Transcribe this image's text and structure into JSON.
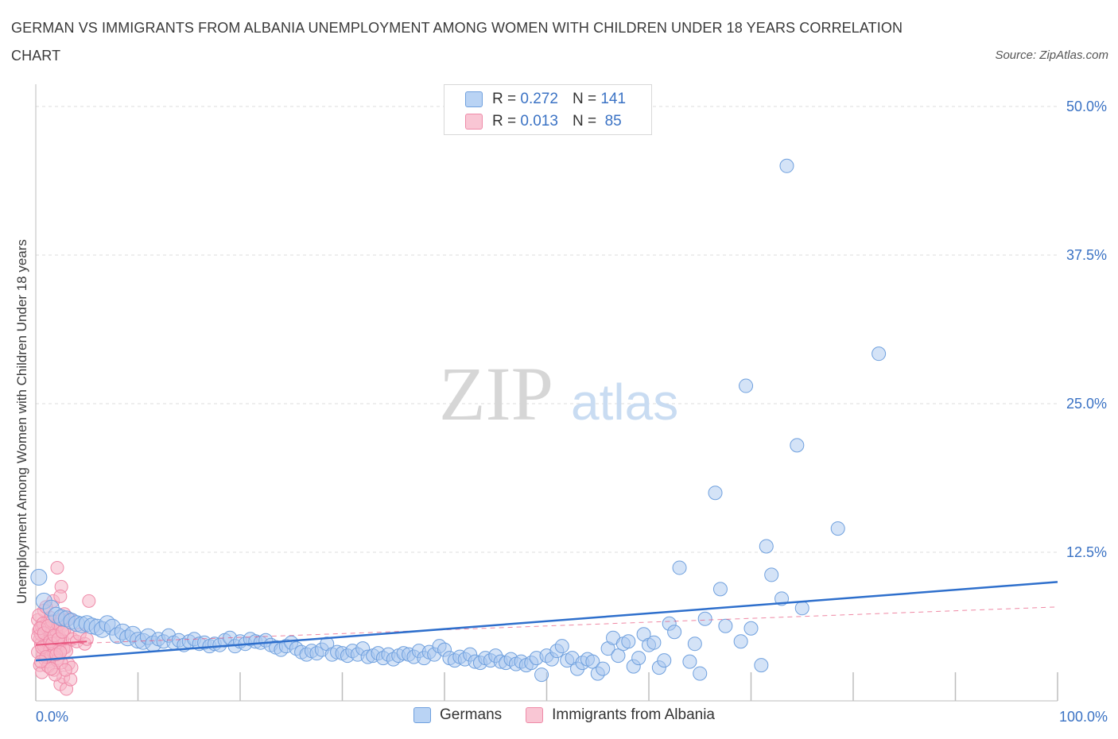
{
  "title": "GERMAN VS IMMIGRANTS FROM ALBANIA UNEMPLOYMENT AMONG WOMEN WITH CHILDREN UNDER 18 YEARS CORRELATION CHART",
  "source": "Source: ZipAtlas.com",
  "watermark": {
    "zip": "ZIP",
    "atlas": "atlas"
  },
  "legend_top": [
    {
      "r_label": "R =",
      "r_value": "0.272",
      "n_label": "N =",
      "n_value": "141"
    },
    {
      "r_label": "R =",
      "r_value": "0.013",
      "n_label": "N =",
      "n_value": "85"
    }
  ],
  "chart_data": {
    "type": "scatter",
    "title": "GERMAN VS IMMIGRANTS FROM ALBANIA UNEMPLOYMENT AMONG WOMEN WITH CHILDREN UNDER 18 YEARS CORRELATION CHART",
    "xlabel": "",
    "ylabel": "Unemployment Among Women with Children Under 18 years",
    "xlim": [
      0,
      100
    ],
    "ylim": [
      0,
      50
    ],
    "x_tick_labels": [
      "0.0%",
      "100.0%"
    ],
    "y_ticks": [
      12.5,
      25.0,
      37.5,
      50.0
    ],
    "y_tick_labels": [
      "12.5%",
      "25.0%",
      "37.5%",
      "50.0%"
    ],
    "grid": true,
    "legend_position": "bottom",
    "colors": {
      "germans_fill": "#a9c8f0",
      "germans_stroke": "#6fa0de",
      "germans_line": "#2e6fcc",
      "albania_fill": "#f6b6c8",
      "albania_stroke": "#ef8aa8",
      "albania_line": "#e8557e"
    },
    "series": [
      {
        "name": "Germans",
        "trend": {
          "x": [
            0,
            100
          ],
          "y": [
            3.4,
            10.0
          ]
        },
        "points": [
          [
            0.3,
            10.4
          ],
          [
            0.8,
            8.4
          ],
          [
            1.5,
            7.8
          ],
          [
            2.0,
            7.2
          ],
          [
            2.5,
            7.0
          ],
          [
            3.0,
            6.9
          ],
          [
            3.5,
            6.7
          ],
          [
            4.0,
            6.5
          ],
          [
            4.5,
            6.4
          ],
          [
            5.0,
            6.5
          ],
          [
            5.5,
            6.3
          ],
          [
            6.0,
            6.2
          ],
          [
            6.5,
            6.0
          ],
          [
            7.0,
            6.5
          ],
          [
            7.5,
            6.2
          ],
          [
            8.0,
            5.5
          ],
          [
            8.5,
            5.8
          ],
          [
            9.0,
            5.3
          ],
          [
            9.5,
            5.6
          ],
          [
            10.0,
            5.1
          ],
          [
            10.5,
            5.0
          ],
          [
            11.0,
            5.4
          ],
          [
            11.5,
            4.8
          ],
          [
            12.0,
            5.2
          ],
          [
            12.5,
            5.0
          ],
          [
            13.0,
            5.5
          ],
          [
            13.5,
            4.9
          ],
          [
            14.0,
            5.1
          ],
          [
            14.5,
            4.7
          ],
          [
            15.0,
            5.0
          ],
          [
            15.5,
            5.2
          ],
          [
            16.0,
            4.8
          ],
          [
            16.5,
            4.9
          ],
          [
            17.0,
            4.6
          ],
          [
            17.5,
            4.8
          ],
          [
            18.0,
            4.7
          ],
          [
            18.5,
            5.1
          ],
          [
            19.0,
            5.3
          ],
          [
            19.5,
            4.6
          ],
          [
            20.0,
            5.0
          ],
          [
            20.5,
            4.8
          ],
          [
            21.0,
            5.2
          ],
          [
            21.5,
            5.0
          ],
          [
            22.0,
            4.9
          ],
          [
            22.5,
            5.1
          ],
          [
            23.0,
            4.7
          ],
          [
            23.5,
            4.5
          ],
          [
            24.0,
            4.3
          ],
          [
            24.5,
            4.6
          ],
          [
            25.0,
            4.9
          ],
          [
            25.5,
            4.4
          ],
          [
            26.0,
            4.1
          ],
          [
            26.5,
            3.9
          ],
          [
            27.0,
            4.2
          ],
          [
            27.5,
            4.0
          ],
          [
            28.0,
            4.3
          ],
          [
            28.5,
            4.8
          ],
          [
            29.0,
            3.9
          ],
          [
            29.5,
            4.1
          ],
          [
            30.0,
            4.0
          ],
          [
            30.5,
            3.8
          ],
          [
            31.0,
            4.2
          ],
          [
            31.5,
            3.9
          ],
          [
            32.0,
            4.4
          ],
          [
            32.5,
            3.7
          ],
          [
            33.0,
            3.8
          ],
          [
            33.5,
            4.0
          ],
          [
            34.0,
            3.6
          ],
          [
            34.5,
            3.9
          ],
          [
            35.0,
            3.5
          ],
          [
            35.5,
            3.8
          ],
          [
            36.0,
            4.0
          ],
          [
            36.5,
            3.9
          ],
          [
            37.0,
            3.7
          ],
          [
            37.5,
            4.2
          ],
          [
            38.0,
            3.6
          ],
          [
            38.5,
            4.1
          ],
          [
            39.0,
            3.9
          ],
          [
            39.5,
            4.6
          ],
          [
            40.0,
            4.3
          ],
          [
            40.5,
            3.6
          ],
          [
            41.0,
            3.4
          ],
          [
            41.5,
            3.7
          ],
          [
            42.0,
            3.5
          ],
          [
            42.5,
            3.9
          ],
          [
            43.0,
            3.3
          ],
          [
            43.5,
            3.2
          ],
          [
            44.0,
            3.6
          ],
          [
            44.5,
            3.4
          ],
          [
            45.0,
            3.8
          ],
          [
            45.5,
            3.3
          ],
          [
            46.0,
            3.2
          ],
          [
            46.5,
            3.5
          ],
          [
            47.0,
            3.1
          ],
          [
            47.5,
            3.3
          ],
          [
            48.0,
            3.0
          ],
          [
            48.5,
            3.2
          ],
          [
            49.0,
            3.6
          ],
          [
            49.5,
            2.2
          ],
          [
            50.0,
            3.8
          ],
          [
            50.5,
            3.5
          ],
          [
            51.0,
            4.2
          ],
          [
            51.5,
            4.6
          ],
          [
            52.0,
            3.4
          ],
          [
            52.5,
            3.6
          ],
          [
            53.0,
            2.7
          ],
          [
            53.5,
            3.2
          ],
          [
            54.0,
            3.5
          ],
          [
            54.5,
            3.3
          ],
          [
            55.0,
            2.3
          ],
          [
            55.5,
            2.7
          ],
          [
            56.0,
            4.4
          ],
          [
            56.5,
            5.3
          ],
          [
            57.0,
            3.8
          ],
          [
            57.5,
            4.8
          ],
          [
            58.0,
            5.0
          ],
          [
            58.5,
            2.9
          ],
          [
            59.0,
            3.6
          ],
          [
            59.5,
            5.6
          ],
          [
            60.0,
            4.7
          ],
          [
            60.5,
            4.9
          ],
          [
            61.0,
            2.8
          ],
          [
            61.5,
            3.4
          ],
          [
            62.0,
            6.5
          ],
          [
            62.5,
            5.8
          ],
          [
            63.0,
            11.2
          ],
          [
            64.0,
            3.3
          ],
          [
            64.5,
            4.8
          ],
          [
            65.0,
            2.3
          ],
          [
            65.5,
            6.9
          ],
          [
            67.0,
            9.4
          ],
          [
            67.5,
            6.3
          ],
          [
            69.0,
            5.0
          ],
          [
            70.0,
            6.1
          ],
          [
            71.0,
            3.0
          ],
          [
            72.0,
            10.6
          ],
          [
            73.0,
            8.6
          ],
          [
            75.0,
            7.8
          ],
          [
            66.5,
            17.5
          ],
          [
            69.5,
            26.5
          ],
          [
            71.5,
            13.0
          ],
          [
            74.5,
            21.5
          ],
          [
            73.5,
            45.0
          ],
          [
            78.5,
            14.5
          ],
          [
            82.5,
            29.2
          ]
        ]
      },
      {
        "name": "Immigrants from Albania",
        "trend": {
          "x": [
            0,
            5
          ],
          "y": [
            4.7,
            5.0
          ]
        },
        "trend_extended": {
          "x": [
            0,
            100
          ],
          "y": [
            4.7,
            7.9
          ]
        },
        "points": [
          [
            0.2,
            6.8
          ],
          [
            0.3,
            5.9
          ],
          [
            0.4,
            5.2
          ],
          [
            0.5,
            4.8
          ],
          [
            0.6,
            6.2
          ],
          [
            0.7,
            3.9
          ],
          [
            0.8,
            7.6
          ],
          [
            0.9,
            5.5
          ],
          [
            1.0,
            4.4
          ],
          [
            1.1,
            6.6
          ],
          [
            1.2,
            5.1
          ],
          [
            1.3,
            3.3
          ],
          [
            1.4,
            7.0
          ],
          [
            1.5,
            5.8
          ],
          [
            1.6,
            4.2
          ],
          [
            1.7,
            8.4
          ],
          [
            1.8,
            2.6
          ],
          [
            1.9,
            6.0
          ],
          [
            2.0,
            4.9
          ],
          [
            2.1,
            11.2
          ],
          [
            2.2,
            3.6
          ],
          [
            2.3,
            5.4
          ],
          [
            2.4,
            1.4
          ],
          [
            2.5,
            9.6
          ],
          [
            2.6,
            6.3
          ],
          [
            2.7,
            2.0
          ],
          [
            2.8,
            7.3
          ],
          [
            2.9,
            4.5
          ],
          [
            3.0,
            1.0
          ],
          [
            3.1,
            5.7
          ],
          [
            3.2,
            3.1
          ],
          [
            3.3,
            6.9
          ],
          [
            3.4,
            1.8
          ],
          [
            3.5,
            2.8
          ],
          [
            0.2,
            4.1
          ],
          [
            0.3,
            7.2
          ],
          [
            0.4,
            3.0
          ],
          [
            0.5,
            5.6
          ],
          [
            0.6,
            2.4
          ],
          [
            0.7,
            6.5
          ],
          [
            0.8,
            4.6
          ],
          [
            0.9,
            3.5
          ],
          [
            1.0,
            7.9
          ],
          [
            1.1,
            5.0
          ],
          [
            1.2,
            2.9
          ],
          [
            1.3,
            6.1
          ],
          [
            1.4,
            4.3
          ],
          [
            1.5,
            3.8
          ],
          [
            1.6,
            6.7
          ],
          [
            1.7,
            5.3
          ],
          [
            1.8,
            4.0
          ],
          [
            1.9,
            2.2
          ],
          [
            2.0,
            5.9
          ],
          [
            2.1,
            3.4
          ],
          [
            2.2,
            6.4
          ],
          [
            2.3,
            4.7
          ],
          [
            2.4,
            8.8
          ],
          [
            2.5,
            3.2
          ],
          [
            2.6,
            5.1
          ],
          [
            2.7,
            4.4
          ],
          [
            2.8,
            6.0
          ],
          [
            2.9,
            2.6
          ],
          [
            3.0,
            4.2
          ],
          [
            0.2,
            5.4
          ],
          [
            0.4,
            6.1
          ],
          [
            0.6,
            4.5
          ],
          [
            0.8,
            5.7
          ],
          [
            1.0,
            3.7
          ],
          [
            1.2,
            6.3
          ],
          [
            1.4,
            5.0
          ],
          [
            1.6,
            4.8
          ],
          [
            1.8,
            5.5
          ],
          [
            2.0,
            3.9
          ],
          [
            2.2,
            5.2
          ],
          [
            2.4,
            4.1
          ],
          [
            2.6,
            5.8
          ],
          [
            0.5,
            3.3
          ],
          [
            1.5,
            2.7
          ],
          [
            2.5,
            6.8
          ],
          [
            3.6,
            5.2
          ],
          [
            4.0,
            5.0
          ],
          [
            4.3,
            5.6
          ],
          [
            4.8,
            4.8
          ],
          [
            5.0,
            5.2
          ],
          [
            5.2,
            8.4
          ]
        ]
      }
    ]
  },
  "legend_bottom": [
    "Germans",
    "Immigrants from Albania"
  ]
}
